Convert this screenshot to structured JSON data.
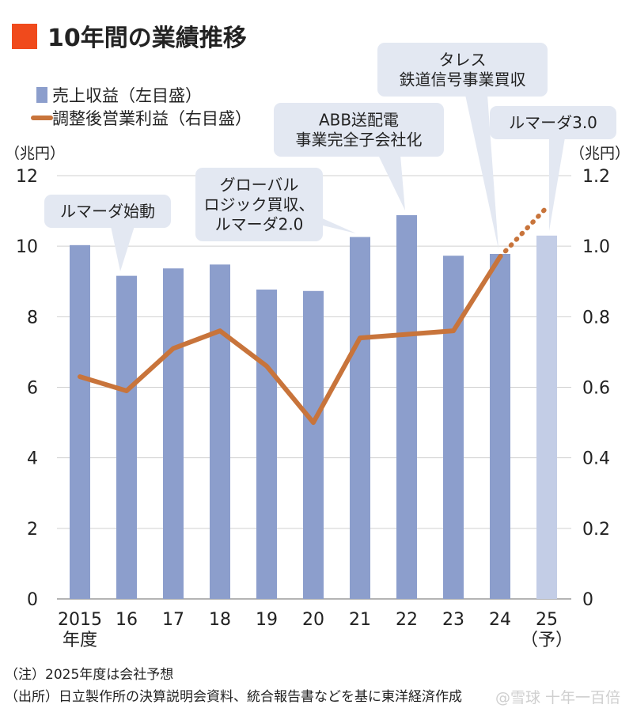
{
  "title": "10年間の業績推移",
  "colors": {
    "bar": "#8c9ecc",
    "bar_forecast": "#c3cde6",
    "line": "#c8743b",
    "accent_square": "#f04a1c",
    "bubble": "#e3e8f2"
  },
  "legend": {
    "bar_label": "売上収益（左目盛）",
    "line_label": "調整後営業利益（右目盛）"
  },
  "left_unit": "（兆円）",
  "right_unit": "（兆円）",
  "chart_data": {
    "type": "bar",
    "categories": [
      "2015",
      "16",
      "17",
      "18",
      "19",
      "20",
      "21",
      "22",
      "23",
      "24",
      "25"
    ],
    "category_sublabels": [
      "年度",
      "",
      "",
      "",
      "",
      "",
      "",
      "",
      "",
      "",
      "（予）"
    ],
    "series": [
      {
        "name": "売上収益（左目盛）",
        "type": "bar",
        "axis": "left",
        "values": [
          10.03,
          9.16,
          9.37,
          9.48,
          8.77,
          8.73,
          10.26,
          10.88,
          9.73,
          9.78,
          10.3
        ],
        "forecast_from_index": 10
      },
      {
        "name": "調整後営業利益（右目盛）",
        "type": "line",
        "axis": "right",
        "values": [
          0.63,
          0.59,
          0.71,
          0.76,
          0.66,
          0.5,
          0.74,
          0.75,
          0.76,
          0.97,
          1.11
        ],
        "forecast_from_index": 9
      }
    ],
    "ylim_left": [
      0,
      12
    ],
    "yticks_left": [
      "0",
      "2",
      "4",
      "6",
      "8",
      "10",
      "12"
    ],
    "ylim_right": [
      0,
      1.2
    ],
    "yticks_right": [
      "0",
      "0.2",
      "0.4",
      "0.6",
      "0.8",
      "1.0",
      "1.2"
    ],
    "grid": true,
    "legend_position": "top-left"
  },
  "annotations": [
    {
      "lines": [
        "ルマーダ始動"
      ],
      "target_index": 1
    },
    {
      "lines": [
        "グローバル",
        "ロジック買収、",
        "ルマーダ2.0"
      ],
      "target_index": 6
    },
    {
      "lines": [
        "ABB送配電",
        "事業完全子会社化"
      ],
      "target_index": 7
    },
    {
      "lines": [
        "タレス",
        "鉄道信号事業買収"
      ],
      "target_index": 9
    },
    {
      "lines": [
        "ルマーダ3.0"
      ],
      "target_index": 10
    }
  ],
  "notes": [
    "（注）2025年度は会社予想",
    "（出所）日立製作所の決算説明会資料、統合報告書などを基に東洋経済作成"
  ],
  "watermark": "@雪球 十年一百倍"
}
